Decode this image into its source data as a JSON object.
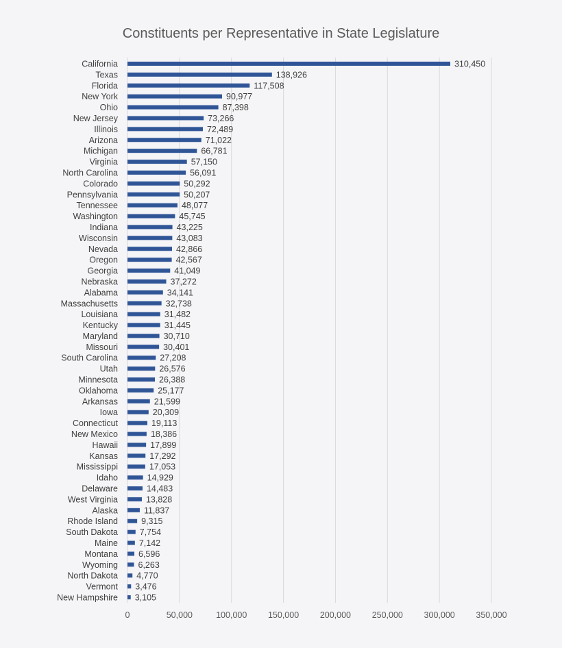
{
  "chart_data": {
    "type": "bar",
    "orientation": "horizontal",
    "title": "Constituents per Representative in State Legislature",
    "xlabel": "",
    "ylabel": "",
    "xlim": [
      0,
      350000
    ],
    "x_ticks": [
      0,
      50000,
      100000,
      150000,
      200000,
      250000,
      300000,
      350000
    ],
    "x_tick_labels": [
      "0",
      "50,000",
      "100,000",
      "150,000",
      "200,000",
      "250,000",
      "300,000",
      "350,000"
    ],
    "grid": true,
    "bar_color": "#2f5597",
    "categories": [
      "California",
      "Texas",
      "Florida",
      "New York",
      "Ohio",
      "New Jersey",
      "Illinois",
      "Arizona",
      "Michigan",
      "Virginia",
      "North Carolina",
      "Colorado",
      "Pennsylvania",
      "Tennessee",
      "Washington",
      "Indiana",
      "Wisconsin",
      "Nevada",
      "Oregon",
      "Georgia",
      "Nebraska",
      "Alabama",
      "Massachusetts",
      "Louisiana",
      "Kentucky",
      "Maryland",
      "Missouri",
      "South Carolina",
      "Utah",
      "Minnesota",
      "Oklahoma",
      "Arkansas",
      "Iowa",
      "Connecticut",
      "New Mexico",
      "Hawaii",
      "Kansas",
      "Mississippi",
      "Idaho",
      "Delaware",
      "West Virginia",
      "Alaska",
      "Rhode Island",
      "South Dakota",
      "Maine",
      "Montana",
      "Wyoming",
      "North Dakota",
      "Vermont",
      "New Hampshire"
    ],
    "values": [
      310450,
      138926,
      117508,
      90977,
      87398,
      73266,
      72489,
      71022,
      66781,
      57150,
      56091,
      50292,
      50207,
      48077,
      45745,
      43225,
      43083,
      42866,
      42567,
      41049,
      37272,
      34141,
      32738,
      31482,
      31445,
      30710,
      30401,
      27208,
      26576,
      26388,
      25177,
      21599,
      20309,
      19113,
      18386,
      17899,
      17292,
      17053,
      14929,
      14483,
      13828,
      11837,
      9315,
      7754,
      7142,
      6596,
      6263,
      4770,
      3476,
      3105
    ],
    "value_labels": [
      "310,450",
      "138,926",
      "117,508",
      "90,977",
      "87,398",
      "73,266",
      "72,489",
      "71,022",
      "66,781",
      "57,150",
      "56,091",
      "50,292",
      "50,207",
      "48,077",
      "45,745",
      "43,225",
      "43,083",
      "42,866",
      "42,567",
      "41,049",
      "37,272",
      "34,141",
      "32,738",
      "31,482",
      "31,445",
      "30,710",
      "30,401",
      "27,208",
      "26,576",
      "26,388",
      "25,177",
      "21,599",
      "20,309",
      "19,113",
      "18,386",
      "17,899",
      "17,292",
      "17,053",
      "14,929",
      "14,483",
      "13,828",
      "11,837",
      "9,315",
      "7,754",
      "7,142",
      "6,596",
      "6,263",
      "4,770",
      "3,476",
      "3,105"
    ]
  }
}
